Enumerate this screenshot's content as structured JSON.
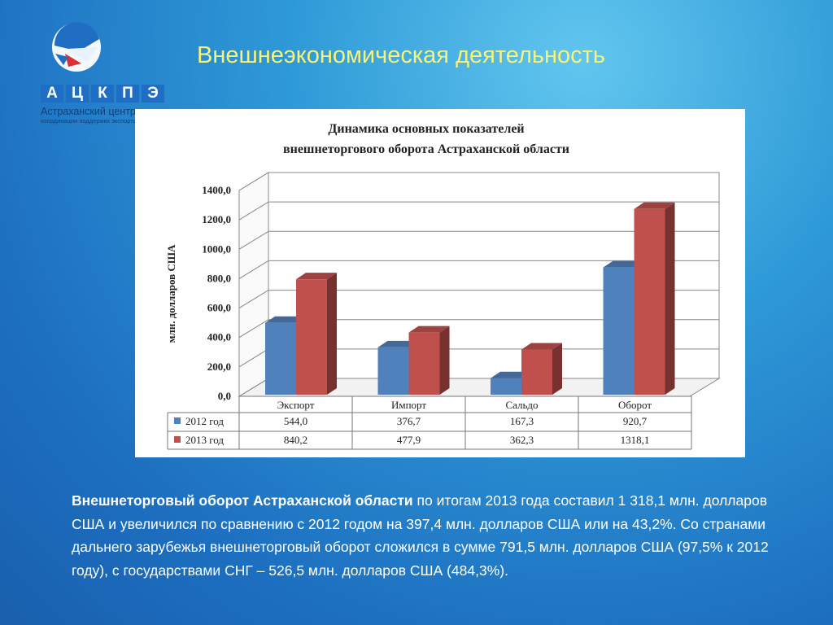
{
  "logo": {
    "letters": [
      "А",
      "Ц",
      "К",
      "П",
      "Э"
    ],
    "line1": "Астраханский центр",
    "line2": "координации поддержки экспорта"
  },
  "title": "Внешнеэкономическая деятельность",
  "chart_data": {
    "type": "bar",
    "title_line1": "Динамика основных показателей",
    "title_line2": "внешнеторгового оборота Астраханской области",
    "ylabel": "млн. долларов США",
    "ylim": [
      0,
      1400
    ],
    "yticks": [
      "0,0",
      "200,0",
      "400,0",
      "600,0",
      "800,0",
      "1000,0",
      "1200,0",
      "1400,0"
    ],
    "categories": [
      "Экспорт",
      "Импорт",
      "Сальдо",
      "Оборот"
    ],
    "series": [
      {
        "name": "2012 год",
        "values": [
          544.0,
          376.7,
          167.3,
          920.7
        ],
        "labels": [
          "544,0",
          "376,7",
          "167,3",
          "920,7"
        ],
        "color": "#4f81bd"
      },
      {
        "name": "2013 год",
        "values": [
          840.2,
          477.9,
          362.3,
          1318.1
        ],
        "labels": [
          "840,2",
          "477,9",
          "362,3",
          "1318,1"
        ],
        "color": "#c0504d"
      }
    ],
    "grid": true,
    "legend": "data-table"
  },
  "text": {
    "bold": "Внешнеторговый оборот Астраханской области",
    "rest": " по итогам 2013 года составил 1 318,1 млн. долларов США и увеличился по сравнению с 2012 годом на 397,4 млн. долларов США или на 43,2%. Со странами дальнего зарубежья внешнеторговый оборот сложился в сумме 791,5 млн. долларов США (97,5% к 2012 году), с государствами СНГ – 526,5 млн. долларов США (484,3%)."
  }
}
